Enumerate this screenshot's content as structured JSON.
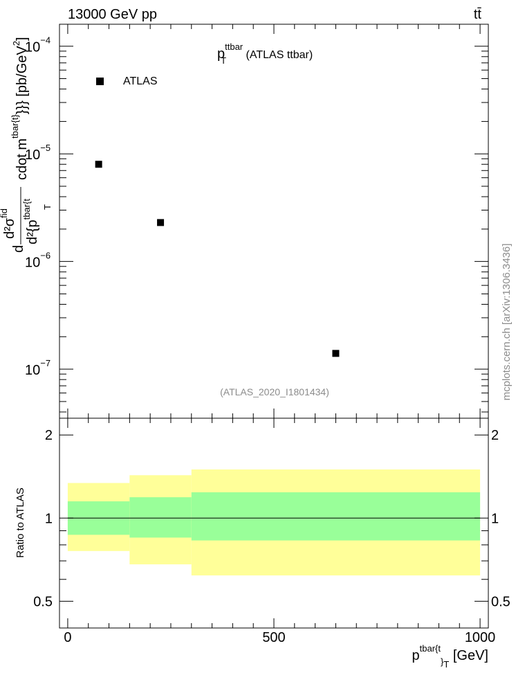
{
  "header": {
    "left": "13000 GeV pp",
    "right": "tt̄"
  },
  "side_label": "mcplots.cern.ch [arXiv:1306.3436]",
  "chart_data": [
    {
      "type": "scatter",
      "panel": "main",
      "title_main": "p",
      "title_sup": "ttbar",
      "title_sub": "T",
      "title_rest": " (ATLAS ttbar)",
      "watermark": "(ATLAS_2020_I1801434)",
      "ylabel": "d d²σ^{fid} / d²{p_T^{tbar{t}} cdot m^{tbar{t}}}} [pb/GeV²]",
      "ylabel_lines": [
        "d",
        "d²σ",
        "fid",
        "d²{p",
        "tbar{t",
        "T",
        "cdot m",
        "tbar{t}",
        "}}} [pb/GeV",
        "2",
        "]"
      ],
      "yscale": "log",
      "ylim": [
        3.5e-08,
        0.00016
      ],
      "xlim": [
        -20,
        1020
      ],
      "ytick_labels": [
        {
          "base": "10",
          "exp": "−4",
          "value": 0.0001
        },
        {
          "base": "10",
          "exp": "−5",
          "value": 1e-05
        },
        {
          "base": "10",
          "exp": "−6",
          "value": 1e-06
        },
        {
          "base": "10",
          "exp": "−7",
          "value": 1e-07
        }
      ],
      "series": [
        {
          "name": "ATLAS",
          "color": "#000000",
          "marker": "square",
          "points": [
            {
              "x": 75,
              "y": 8e-06
            },
            {
              "x": 225,
              "y": 2.3e-06
            },
            {
              "x": 650,
              "y": 1.4e-07
            }
          ]
        }
      ],
      "legend": {
        "placement": "top-left",
        "label": "ATLAS"
      }
    },
    {
      "type": "area",
      "panel": "ratio",
      "ylabel": "Ratio to ATLAS",
      "ylim": [
        0.4,
        2.3
      ],
      "xlim": [
        -20,
        1020
      ],
      "ytick_labels": [
        "0.5",
        "1",
        "2"
      ],
      "xtick_labels": [
        "0",
        "500",
        "1000"
      ],
      "xlabel_main": "p",
      "xlabel_sup": "tbar{t",
      "xlabel_sub": "}",
      "xlabel_subsub": "T",
      "xlabel_rest": " [GeV]",
      "reference_line": 1,
      "bands": [
        {
          "x0": 0,
          "x1": 150,
          "yellow": [
            0.76,
            1.34
          ],
          "green": [
            0.87,
            1.15
          ]
        },
        {
          "x0": 150,
          "x1": 300,
          "yellow": [
            0.68,
            1.43
          ],
          "green": [
            0.85,
            1.19
          ]
        },
        {
          "x0": 300,
          "x1": 1000,
          "yellow": [
            0.62,
            1.5
          ],
          "green": [
            0.83,
            1.24
          ]
        }
      ],
      "colors": {
        "yellow": "#ffff99",
        "green": "#99ff99",
        "line": "#000000"
      }
    }
  ]
}
